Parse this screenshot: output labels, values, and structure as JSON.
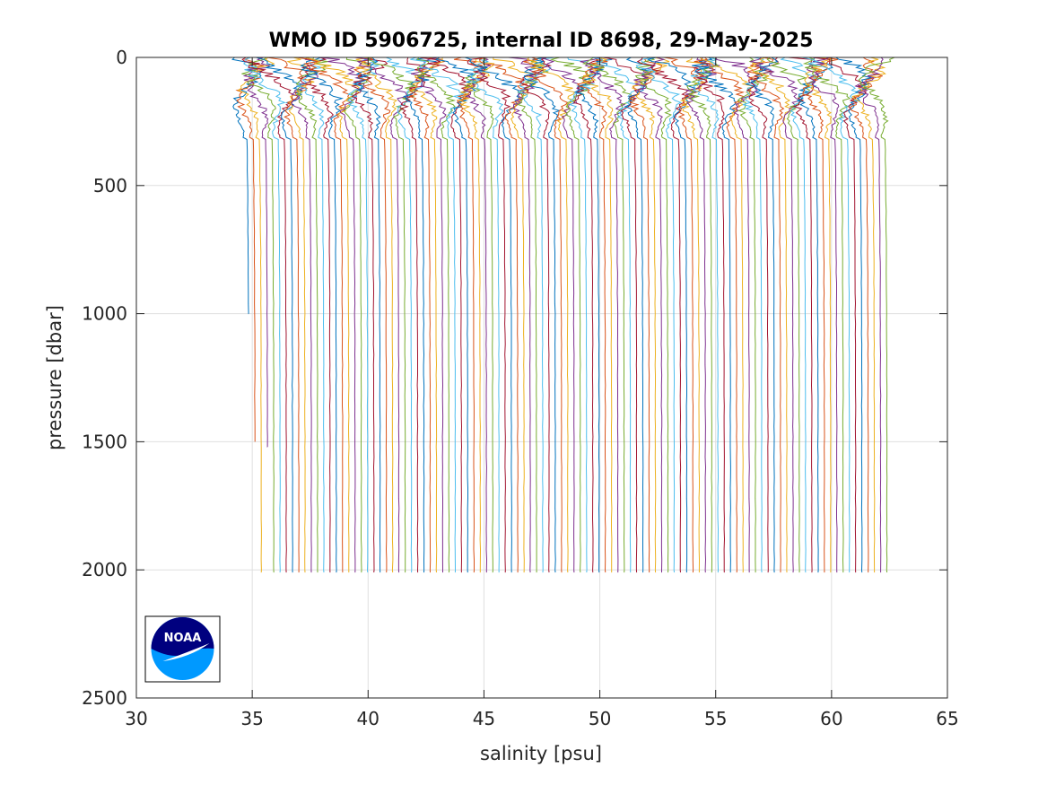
{
  "chart_data": {
    "type": "line",
    "title": "WMO ID 5906725, internal ID 8698, 29-May-2025",
    "xlabel": "salinity [psu]",
    "ylabel": "pressure [dbar]",
    "xlim": [
      30,
      65
    ],
    "ylim": [
      0,
      2500
    ],
    "y_reversed": true,
    "grid": true,
    "xticks": [
      30,
      35,
      40,
      45,
      50,
      55,
      60,
      65
    ],
    "yticks": [
      0,
      500,
      1000,
      1500,
      2000,
      2500
    ],
    "profiles": {
      "count": 103,
      "deep_salinity_first": 34.85,
      "offset_per_profile": 0.27,
      "max_pressure": [
        1000,
        1500,
        1520,
        2010
      ],
      "note_values": "offset series of salinity profiles"
    },
    "series_colors": [
      "#0072bd",
      "#d95319",
      "#edb120",
      "#7e2f8e",
      "#77ac30",
      "#4dbeee",
      "#a2142f"
    ]
  },
  "logo": {
    "text": "NOAA",
    "colors": {
      "dark": "#00007f",
      "light": "#0099ff"
    }
  }
}
